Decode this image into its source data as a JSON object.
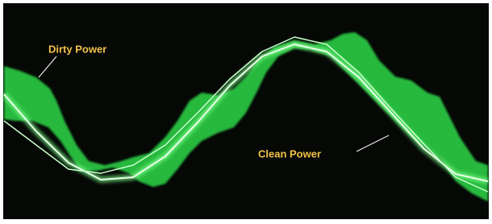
{
  "annotations": {
    "dirty": "Dirty Power",
    "clean": "Clean Power"
  }
}
